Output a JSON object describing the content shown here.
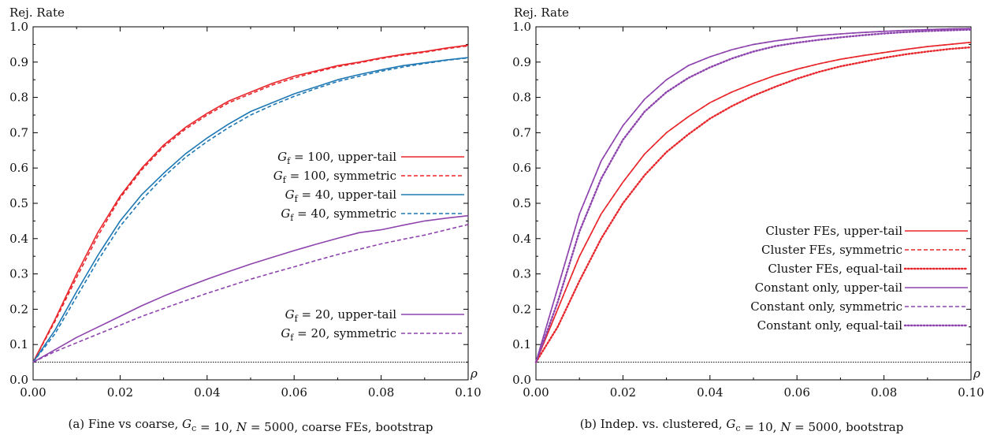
{
  "chart_data": [
    {
      "type": "line",
      "caption": "(a) Fine vs coarse, G_c = 10, N = 5000, coarse FEs, bootstrap",
      "ylabel": "Rej. Rate",
      "xlabel": "ρ",
      "xlim": [
        0.0,
        0.1
      ],
      "ylim": [
        0.0,
        1.0
      ],
      "x_ticks": [
        "0.00",
        "0.02",
        "0.04",
        "0.06",
        "0.08",
        "0.10"
      ],
      "y_ticks": [
        "0.0",
        "0.1",
        "0.2",
        "0.3",
        "0.4",
        "0.5",
        "0.6",
        "0.7",
        "0.8",
        "0.9",
        "1.0"
      ],
      "reference_line": 0.05,
      "legend_groups": [
        {
          "position": "center-right",
          "series": [
            0,
            1,
            2,
            3
          ]
        },
        {
          "position": "bottom-right",
          "series": [
            4,
            5
          ]
        }
      ],
      "x": [
        0,
        0.005,
        0.01,
        0.015,
        0.02,
        0.025,
        0.03,
        0.035,
        0.04,
        0.045,
        0.05,
        0.055,
        0.06,
        0.065,
        0.07,
        0.075,
        0.08,
        0.085,
        0.09,
        0.095,
        0.1
      ],
      "series": [
        {
          "name": "G_f = 100, upper-tail",
          "color": "#e8262b",
          "dash": "solid",
          "values": [
            0.05,
            0.17,
            0.3,
            0.42,
            0.52,
            0.6,
            0.665,
            0.715,
            0.755,
            0.79,
            0.815,
            0.84,
            0.86,
            0.875,
            0.89,
            0.9,
            0.912,
            0.922,
            0.93,
            0.94,
            0.948
          ]
        },
        {
          "name": "G_f = 100, symmetric",
          "color": "#e8262b",
          "dash": "dashed",
          "values": [
            0.05,
            0.165,
            0.29,
            0.41,
            0.515,
            0.595,
            0.66,
            0.71,
            0.75,
            0.785,
            0.81,
            0.835,
            0.855,
            0.872,
            0.887,
            0.898,
            0.91,
            0.92,
            0.928,
            0.938,
            0.946
          ]
        },
        {
          "name": "G_f = 40, upper-tail",
          "color": "#1f78b4",
          "dash": "solid",
          "values": [
            0.05,
            0.14,
            0.25,
            0.355,
            0.45,
            0.525,
            0.585,
            0.64,
            0.685,
            0.725,
            0.76,
            0.785,
            0.81,
            0.83,
            0.85,
            0.865,
            0.878,
            0.89,
            0.898,
            0.906,
            0.913
          ]
        },
        {
          "name": "G_f = 40, symmetric",
          "color": "#1f78b4",
          "dash": "dashed",
          "values": [
            0.05,
            0.13,
            0.235,
            0.34,
            0.435,
            0.51,
            0.575,
            0.63,
            0.675,
            0.715,
            0.75,
            0.778,
            0.803,
            0.825,
            0.845,
            0.86,
            0.874,
            0.886,
            0.896,
            0.905,
            0.912
          ]
        },
        {
          "name": "G_f = 20, upper-tail",
          "color": "#8e44ad",
          "dash": "solid",
          "values": [
            0.05,
            0.085,
            0.12,
            0.15,
            0.18,
            0.21,
            0.237,
            0.262,
            0.285,
            0.307,
            0.328,
            0.347,
            0.366,
            0.384,
            0.401,
            0.417,
            0.425,
            0.438,
            0.45,
            0.458,
            0.465
          ]
        },
        {
          "name": "G_f = 20, symmetric",
          "color": "#8e44ad",
          "dash": "dashed",
          "values": [
            0.05,
            0.08,
            0.105,
            0.13,
            0.155,
            0.18,
            0.202,
            0.224,
            0.245,
            0.265,
            0.285,
            0.303,
            0.32,
            0.338,
            0.355,
            0.37,
            0.385,
            0.398,
            0.41,
            0.425,
            0.44
          ]
        }
      ]
    },
    {
      "type": "line",
      "caption": "(b) Indep. vs. clustered, G_c = 10, N = 5000, bootstrap",
      "ylabel": "Rej. Rate",
      "xlabel": "ρ",
      "xlim": [
        0.0,
        0.1
      ],
      "ylim": [
        0.0,
        1.0
      ],
      "x_ticks": [
        "0.00",
        "0.02",
        "0.04",
        "0.06",
        "0.08",
        "0.10"
      ],
      "y_ticks": [
        "0.0",
        "0.1",
        "0.2",
        "0.3",
        "0.4",
        "0.5",
        "0.6",
        "0.7",
        "0.8",
        "0.9",
        "1.0"
      ],
      "reference_line": 0.05,
      "legend_groups": [
        {
          "position": "bottom-right",
          "series": [
            0,
            1,
            2,
            3,
            4,
            5
          ]
        }
      ],
      "x": [
        0,
        0.005,
        0.01,
        0.015,
        0.02,
        0.025,
        0.03,
        0.035,
        0.04,
        0.045,
        0.05,
        0.055,
        0.06,
        0.065,
        0.07,
        0.075,
        0.08,
        0.085,
        0.09,
        0.095,
        0.1
      ],
      "series": [
        {
          "name": "Cluster FEs, upper-tail",
          "color": "#e8262b",
          "dash": "solid",
          "values": [
            0.05,
            0.2,
            0.35,
            0.47,
            0.56,
            0.64,
            0.7,
            0.745,
            0.785,
            0.815,
            0.84,
            0.862,
            0.88,
            0.895,
            0.908,
            0.918,
            0.927,
            0.936,
            0.944,
            0.95,
            0.956
          ]
        },
        {
          "name": "Cluster FEs, symmetric",
          "color": "#e8262b",
          "dash": "dashed",
          "values": [
            0.05,
            0.2,
            0.35,
            0.47,
            0.56,
            0.64,
            0.7,
            0.745,
            0.785,
            0.815,
            0.84,
            0.862,
            0.88,
            0.895,
            0.908,
            0.918,
            0.927,
            0.936,
            0.944,
            0.95,
            0.956
          ]
        },
        {
          "name": "Cluster FEs, equal-tail",
          "color": "#e8262b",
          "dash": "dotted",
          "values": [
            0.05,
            0.15,
            0.28,
            0.4,
            0.5,
            0.58,
            0.645,
            0.695,
            0.74,
            0.775,
            0.805,
            0.83,
            0.853,
            0.872,
            0.888,
            0.9,
            0.912,
            0.922,
            0.93,
            0.937,
            0.942
          ]
        },
        {
          "name": "Constant only, upper-tail",
          "color": "#8e44ad",
          "dash": "solid",
          "values": [
            0.05,
            0.26,
            0.47,
            0.62,
            0.72,
            0.795,
            0.85,
            0.89,
            0.915,
            0.935,
            0.95,
            0.96,
            0.968,
            0.975,
            0.98,
            0.984,
            0.987,
            0.99,
            0.992,
            0.994,
            0.995
          ]
        },
        {
          "name": "Constant only, symmetric",
          "color": "#8e44ad",
          "dash": "dashed",
          "values": [
            0.05,
            0.26,
            0.47,
            0.62,
            0.72,
            0.795,
            0.85,
            0.89,
            0.915,
            0.935,
            0.95,
            0.96,
            0.968,
            0.975,
            0.98,
            0.984,
            0.987,
            0.99,
            0.992,
            0.994,
            0.995
          ]
        },
        {
          "name": "Constant only, equal-tail",
          "color": "#8e44ad",
          "dash": "dotted",
          "values": [
            0.05,
            0.22,
            0.42,
            0.57,
            0.68,
            0.76,
            0.815,
            0.855,
            0.885,
            0.91,
            0.93,
            0.945,
            0.955,
            0.963,
            0.97,
            0.976,
            0.981,
            0.985,
            0.988,
            0.99,
            0.992
          ]
        }
      ]
    }
  ]
}
